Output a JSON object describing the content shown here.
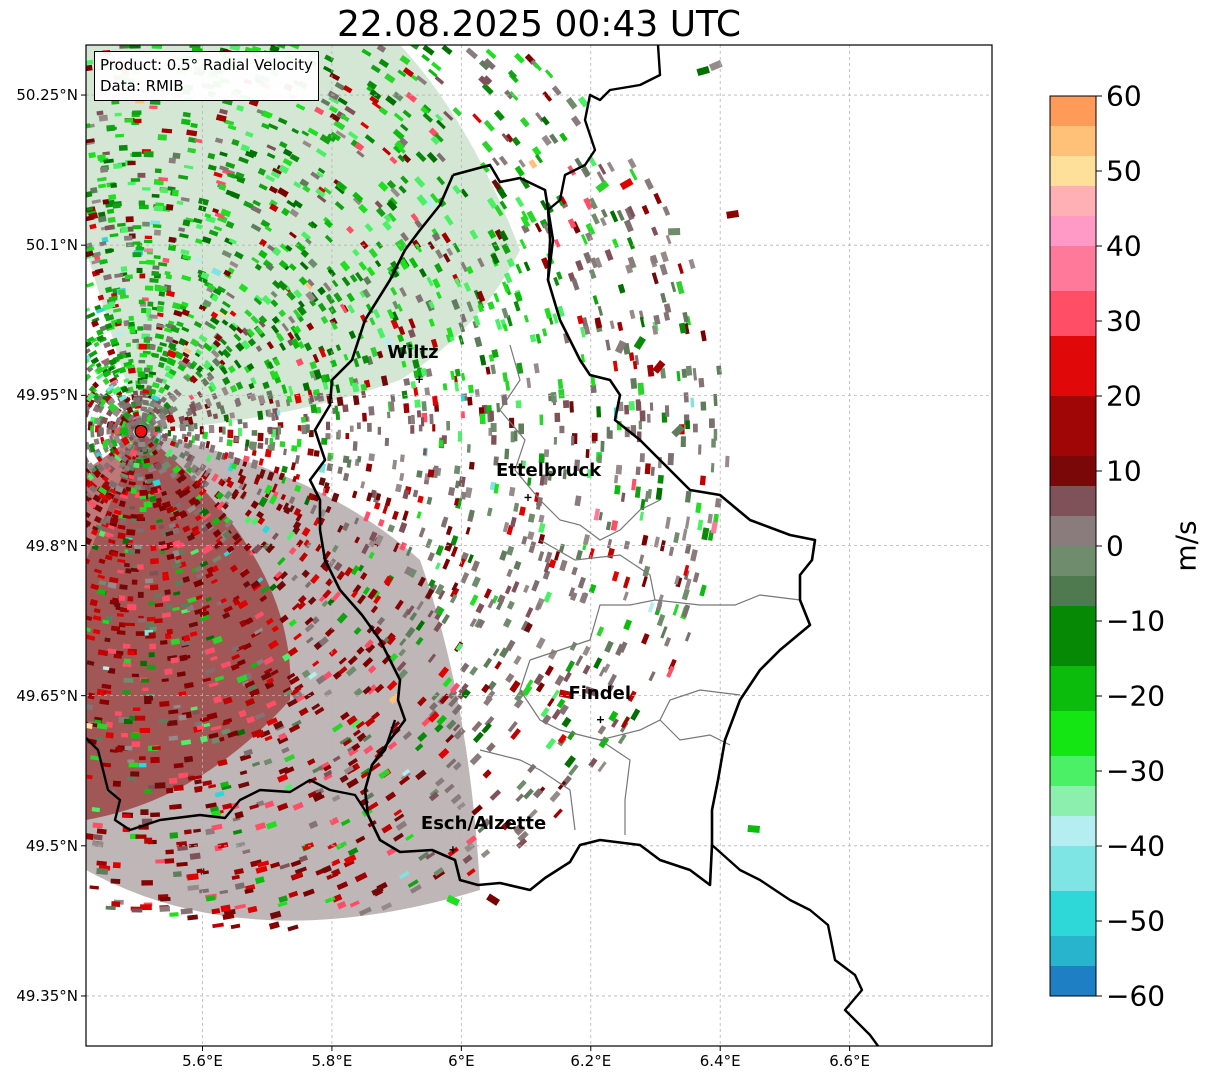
{
  "title": "22.08.2025 00:43 UTC",
  "product_box": {
    "line1": "Product: 0.5° Radial Velocity",
    "line2": "Data: RMIB"
  },
  "axes": {
    "lon_extent": [
      5.42,
      6.82
    ],
    "lat_extent": [
      49.3,
      50.3
    ],
    "lat_ticks": [
      {
        "value": 50.25,
        "label": "50.25°N"
      },
      {
        "value": 50.1,
        "label": "50.1°N"
      },
      {
        "value": 49.95,
        "label": "49.95°N"
      },
      {
        "value": 49.8,
        "label": "49.8°N"
      },
      {
        "value": 49.65,
        "label": "49.65°N"
      },
      {
        "value": 49.5,
        "label": "49.5°N"
      },
      {
        "value": 49.35,
        "label": "49.35°N"
      }
    ],
    "lon_ticks": [
      {
        "value": 5.6,
        "label": "5.6°E"
      },
      {
        "value": 5.8,
        "label": "5.8°E"
      },
      {
        "value": 6.0,
        "label": "6°E"
      },
      {
        "value": 6.2,
        "label": "6.2°E"
      },
      {
        "value": 6.4,
        "label": "6.4°E"
      },
      {
        "value": 6.6,
        "label": "6.6°E"
      }
    ],
    "grid": true
  },
  "radar_site": {
    "lon": 5.505,
    "lat": 49.914,
    "color": "#ee1111"
  },
  "cities": [
    {
      "name": "Wiltz",
      "lon": 5.935,
      "lat": 49.966
    },
    {
      "name": "Ettelbruck",
      "lon": 6.103,
      "lat": 49.848
    },
    {
      "name": "Findel",
      "lon": 6.215,
      "lat": 49.626
    },
    {
      "name": "Esch/Alzette",
      "lon": 5.987,
      "lat": 49.496
    }
  ],
  "colorbar": {
    "label": "m/s",
    "min": -60,
    "max": 60,
    "ticks": [
      {
        "value": 60,
        "label": "60"
      },
      {
        "value": 50,
        "label": "50"
      },
      {
        "value": 40,
        "label": "40"
      },
      {
        "value": 30,
        "label": "30"
      },
      {
        "value": 20,
        "label": "20"
      },
      {
        "value": 10,
        "label": "10"
      },
      {
        "value": 0,
        "label": "0"
      },
      {
        "value": -10,
        "label": "−10"
      },
      {
        "value": -20,
        "label": "−20"
      },
      {
        "value": -30,
        "label": "−30"
      },
      {
        "value": -40,
        "label": "−40"
      },
      {
        "value": -50,
        "label": "−50"
      },
      {
        "value": -60,
        "label": "−60"
      }
    ],
    "stops": [
      {
        "from": -60,
        "to": -56,
        "color": "#1f7fc4"
      },
      {
        "from": -56,
        "to": -52,
        "color": "#28b4cc"
      },
      {
        "from": -52,
        "to": -46,
        "color": "#2fd8d8"
      },
      {
        "from": -46,
        "to": -40,
        "color": "#7ee4e4"
      },
      {
        "from": -40,
        "to": -36,
        "color": "#b4eef0"
      },
      {
        "from": -36,
        "to": -32,
        "color": "#8cefae"
      },
      {
        "from": -32,
        "to": -28,
        "color": "#4cf066"
      },
      {
        "from": -28,
        "to": -22,
        "color": "#14e614"
      },
      {
        "from": -22,
        "to": -16,
        "color": "#0cbc0c"
      },
      {
        "from": -16,
        "to": -8,
        "color": "#068a06"
      },
      {
        "from": -8,
        "to": -4,
        "color": "#4f7a50"
      },
      {
        "from": -4,
        "to": 0,
        "color": "#6f8c6c"
      },
      {
        "from": 0,
        "to": 4,
        "color": "#8a7c7c"
      },
      {
        "from": 4,
        "to": 8,
        "color": "#7e5258"
      },
      {
        "from": 8,
        "to": 12,
        "color": "#7a0808"
      },
      {
        "from": 12,
        "to": 20,
        "color": "#a00606"
      },
      {
        "from": 20,
        "to": 28,
        "color": "#e00808"
      },
      {
        "from": 28,
        "to": 34,
        "color": "#ff4e66"
      },
      {
        "from": 34,
        "to": 40,
        "color": "#ff7a9a"
      },
      {
        "from": 40,
        "to": 44,
        "color": "#ff9ac6"
      },
      {
        "from": 44,
        "to": 48,
        "color": "#ffb0b4"
      },
      {
        "from": 48,
        "to": 52,
        "color": "#ffe09a"
      },
      {
        "from": 52,
        "to": 56,
        "color": "#ffc078"
      },
      {
        "from": 56,
        "to": 60,
        "color": "#ff9a58"
      }
    ]
  }
}
